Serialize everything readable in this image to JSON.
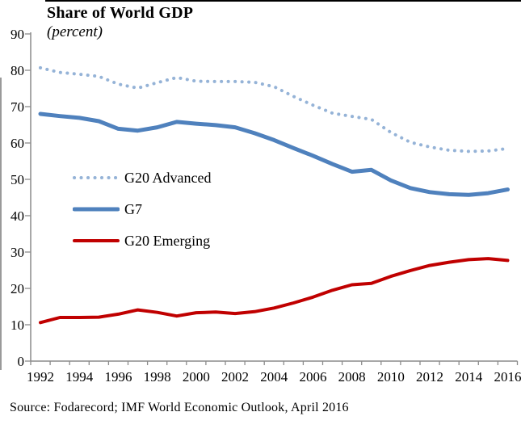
{
  "title": "Share of World GDP",
  "subtitle": "(percent)",
  "source": "Source: Fodarecord; IMF World Economic Outlook, April 2016",
  "chart_data": {
    "type": "line",
    "title": "Share of World GDP",
    "subtitle": "(percent)",
    "xlabel": "",
    "ylabel": "",
    "grid": false,
    "legend_position": "inside-left",
    "ylim": [
      0,
      90
    ],
    "ytick_interval": 10,
    "xtick_label_interval": 2,
    "axis_color": "#8C8C8C",
    "text_color": "#000000",
    "x": [
      1992,
      1993,
      1994,
      1995,
      1996,
      1997,
      1998,
      1999,
      2000,
      2001,
      2002,
      2003,
      2004,
      2005,
      2006,
      2007,
      2008,
      2009,
      2010,
      2011,
      2012,
      2013,
      2014,
      2015,
      2016
    ],
    "series": [
      {
        "name": "G20 Advanced",
        "style": "dotted",
        "color": "#95B3D7",
        "width": 4,
        "values": [
          80.7,
          79.4,
          78.9,
          78.3,
          76.2,
          75.1,
          76.6,
          78.0,
          77.0,
          76.9,
          76.9,
          76.7,
          75.5,
          72.8,
          70.4,
          68.2,
          67.3,
          66.5,
          62.9,
          60.2,
          58.9,
          58.0,
          57.7,
          57.8,
          58.5
        ]
      },
      {
        "name": "G7",
        "style": "solid",
        "color": "#4F81BD",
        "width": 5,
        "values": [
          68.0,
          67.4,
          66.9,
          66.0,
          63.9,
          63.4,
          64.3,
          65.8,
          65.3,
          64.9,
          64.3,
          62.7,
          60.8,
          58.6,
          56.5,
          54.2,
          52.1,
          52.6,
          49.7,
          47.6,
          46.5,
          45.9,
          45.7,
          46.2,
          47.2
        ]
      },
      {
        "name": "G20 Emerging",
        "style": "solid",
        "color": "#C00000",
        "width": 4,
        "values": [
          10.6,
          12.0,
          12.0,
          12.1,
          12.9,
          14.1,
          13.4,
          12.4,
          13.3,
          13.5,
          13.1,
          13.6,
          14.6,
          16.0,
          17.6,
          19.5,
          21.0,
          21.4,
          23.3,
          24.9,
          26.3,
          27.2,
          27.9,
          28.2,
          27.7
        ]
      }
    ]
  }
}
